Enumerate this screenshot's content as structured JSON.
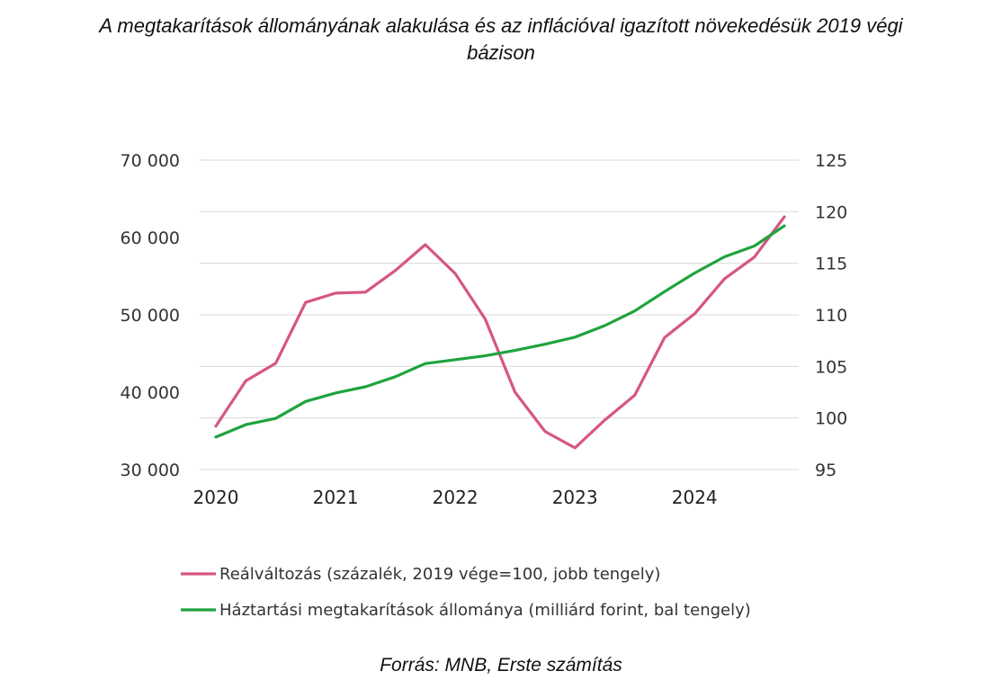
{
  "chart_data": {
    "type": "line",
    "title_line1": "A megtakarítások állományának alakulása és az inflációval igazított növekedésük 2019 végi",
    "title_line2": "bázison",
    "x": [
      2020.0,
      2020.25,
      2020.5,
      2020.75,
      2021.0,
      2021.25,
      2021.5,
      2021.75,
      2022.0,
      2022.25,
      2022.5,
      2022.75,
      2023.0,
      2023.25,
      2023.5,
      2023.75,
      2024.0,
      2024.25,
      2024.5,
      2024.75
    ],
    "x_ticks": [
      "2020",
      "2021",
      "2022",
      "2023",
      "2024"
    ],
    "x_tick_values": [
      2020,
      2021,
      2022,
      2023,
      2024
    ],
    "xlim": [
      2020,
      2024.75
    ],
    "left_axis": {
      "ylim": [
        30000,
        70000
      ],
      "ticks": [
        30000,
        40000,
        50000,
        60000,
        70000
      ],
      "tick_labels": [
        "30 000",
        "40 000",
        "50 000",
        "60 000",
        "70 000"
      ]
    },
    "right_axis": {
      "ylim": [
        95,
        125
      ],
      "ticks": [
        95,
        100,
        105,
        110,
        115,
        120,
        125
      ],
      "tick_labels": [
        "95",
        "100",
        "105",
        "110",
        "115",
        "120",
        "125"
      ]
    },
    "series": [
      {
        "name": "Reálváltozás (százalék, 2019 vége=100, jobb tengely)",
        "axis": "right",
        "color": "#d6577f",
        "values": [
          99.2,
          103.6,
          105.3,
          111.2,
          112.1,
          112.2,
          114.3,
          116.8,
          114.0,
          109.6,
          102.5,
          98.7,
          97.1,
          99.8,
          102.2,
          107.8,
          110.1,
          113.5,
          115.6,
          119.5
        ]
      },
      {
        "name": "Háztartási megtakarítások állománya (milliárd forint, bal tengely)",
        "axis": "left",
        "color": "#1fa33e",
        "values": [
          34200,
          35800,
          36600,
          38800,
          39900,
          40700,
          42000,
          43700,
          44200,
          44700,
          45400,
          46200,
          47100,
          48600,
          50500,
          53000,
          55400,
          57500,
          58900,
          61500
        ]
      }
    ],
    "grid": true,
    "legend_position": "bottom"
  },
  "source": "Forrás: MNB, Erste számítás"
}
